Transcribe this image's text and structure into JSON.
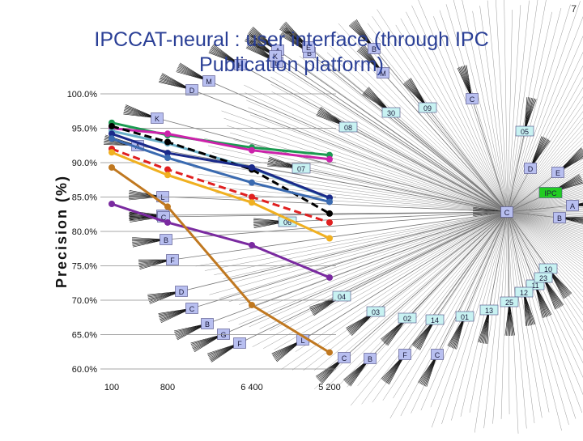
{
  "slide": {
    "title": "IPCCAT-neural : user interface (through IPC Publication platform)",
    "page_number": "7"
  },
  "tree": {
    "root_label": "IPC",
    "root_color": "#22cc22",
    "node_color": "#b8bff0",
    "class_node_color": "#c8f2f2",
    "nodes": [
      "IPC",
      "A",
      "B",
      "C",
      "D",
      "E",
      "01",
      "02",
      "03",
      "04",
      "05",
      "06",
      "07",
      "08",
      "09",
      "10",
      "11",
      "12",
      "13",
      "14",
      "23",
      "25",
      "30",
      "A",
      "B",
      "B",
      "B",
      "B",
      "C",
      "C",
      "C",
      "C",
      "C",
      "D",
      "D",
      "E",
      "F",
      "F",
      "F",
      "G",
      "H",
      "K",
      "K",
      "L",
      "M",
      "M",
      "A",
      "B",
      "L",
      "B",
      "C"
    ]
  },
  "chart_data": {
    "type": "line",
    "title": "",
    "xlabel": "",
    "ylabel": "Precision (%)",
    "categories": [
      "100",
      "800",
      "6 400",
      "5 200"
    ],
    "ylim": [
      60,
      100
    ],
    "y_ticks": [
      "100.0%",
      "95.0%",
      "90.0%",
      "85.0%",
      "80.0%",
      "75.0%",
      "70.0%",
      "65.0%",
      "60.0%"
    ],
    "grid": true,
    "series": [
      {
        "color": "#1a9a50",
        "values": [
          95.8,
          94.0,
          92.2,
          91.1
        ]
      },
      {
        "color": "#cc22aa",
        "values": [
          95.0,
          94.2,
          91.8,
          90.5
        ]
      },
      {
        "color": "#6ab0c8",
        "values": [
          94.6,
          92.8,
          89.2,
          84.8
        ]
      },
      {
        "color": "#000000",
        "values": [
          95.3,
          93.0,
          89.0,
          82.6
        ]
      },
      {
        "color": "#1a2a8a",
        "values": [
          94.2,
          91.4,
          89.3,
          84.9
        ]
      },
      {
        "color": "#3a6ab0",
        "values": [
          93.5,
          90.7,
          87.1,
          84.3
        ]
      },
      {
        "color": "#e02020",
        "values": [
          92.0,
          89.0,
          85.0,
          81.3
        ]
      },
      {
        "color": "#f0b020",
        "values": [
          91.5,
          88.2,
          84.2,
          79.0
        ]
      },
      {
        "color": "#7a2aa0",
        "values": [
          84.0,
          81.3,
          78.0,
          73.3
        ]
      },
      {
        "color": "#c07820",
        "values": [
          89.3,
          83.6,
          69.3,
          62.4
        ]
      }
    ]
  }
}
